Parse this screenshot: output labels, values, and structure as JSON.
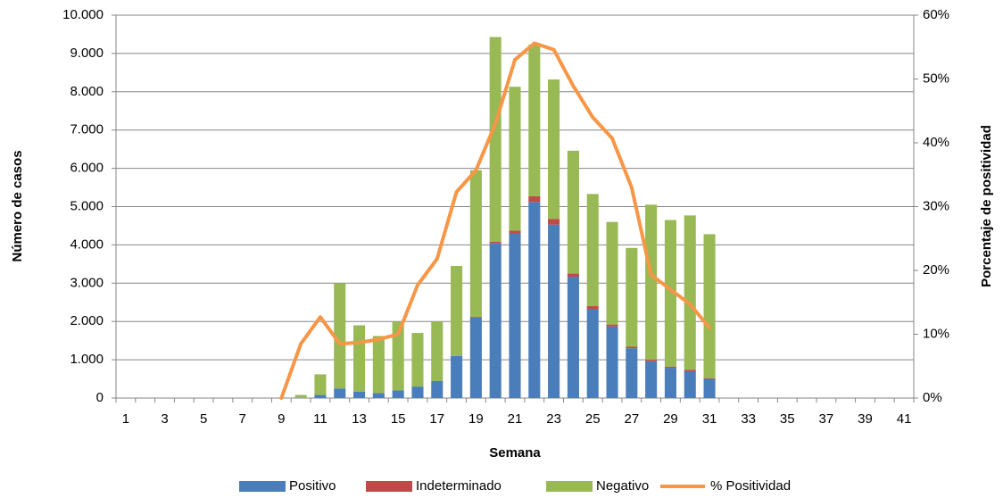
{
  "chart_data": {
    "type": "bar",
    "x_label": "Semana",
    "y_label": "Número de casos",
    "y2_label": "Porcentaje de positividad",
    "categories": [
      1,
      null,
      3,
      null,
      5,
      null,
      7,
      null,
      9,
      null,
      11,
      null,
      13,
      null,
      15,
      null,
      17,
      null,
      19,
      null,
      21,
      null,
      23,
      null,
      25,
      null,
      27,
      null,
      29,
      null,
      31,
      null,
      33,
      null,
      35,
      null,
      37,
      null,
      39,
      null,
      41
    ],
    "series": [
      {
        "name": "Positivo",
        "type": "bar",
        "color": "#4a7ebb",
        "values": [
          null,
          null,
          null,
          null,
          null,
          null,
          null,
          null,
          null,
          0,
          80,
          250,
          170,
          130,
          200,
          300,
          450,
          1100,
          2100,
          4050,
          4300,
          5120,
          4530,
          3170,
          2320,
          1870,
          1300,
          960,
          790,
          700,
          500,
          null,
          null,
          null,
          null,
          null,
          null,
          null,
          null,
          null,
          null
        ]
      },
      {
        "name": "Indeterminado",
        "type": "bar",
        "color": "#be4b48",
        "values": [
          null,
          null,
          null,
          null,
          null,
          null,
          null,
          null,
          null,
          0,
          0,
          0,
          0,
          0,
          0,
          0,
          0,
          0,
          20,
          30,
          70,
          150,
          150,
          80,
          80,
          50,
          40,
          40,
          30,
          40,
          20,
          null,
          null,
          null,
          null,
          null,
          null,
          null,
          null,
          null,
          null
        ]
      },
      {
        "name": "Negativo",
        "type": "bar",
        "color": "#98b954",
        "values": [
          null,
          null,
          null,
          null,
          null,
          null,
          null,
          null,
          null,
          80,
          540,
          2750,
          1730,
          1490,
          1800,
          1400,
          1550,
          2350,
          3830,
          5350,
          3760,
          3960,
          3640,
          3210,
          2930,
          2680,
          2580,
          4050,
          3830,
          4030,
          3760,
          null,
          null,
          null,
          null,
          null,
          null,
          null,
          null,
          null,
          null
        ]
      },
      {
        "name": "% Positividad",
        "type": "line",
        "axis": "y2",
        "color": "#f79646",
        "values": [
          null,
          null,
          null,
          null,
          null,
          null,
          null,
          null,
          0,
          8.5,
          12.7,
          8.5,
          8.7,
          9.2,
          10,
          17.7,
          21.8,
          32.3,
          35.7,
          43,
          53,
          55.6,
          54.6,
          48.9,
          44,
          40.7,
          33,
          19.3,
          17,
          14.7,
          11,
          null,
          null,
          null,
          null,
          null,
          null,
          null,
          null,
          null,
          null
        ]
      }
    ],
    "ylim": [
      0,
      10000
    ],
    "yticks": [
      0,
      {
        "value": 1000,
        "label": "1.000"
      },
      {
        "value": 2000,
        "label": "2.000"
      },
      {
        "value": 3000,
        "label": "3.000"
      },
      {
        "value": 4000,
        "label": "4.000"
      },
      {
        "value": 5000,
        "label": "5.000"
      },
      {
        "value": 6000,
        "label": "6.000"
      },
      {
        "value": 7000,
        "label": "7.000"
      },
      {
        "value": 8000,
        "label": "8.000"
      },
      {
        "value": 9000,
        "label": "9.000"
      },
      {
        "value": 10000,
        "label": "10.000"
      }
    ],
    "y2lim": [
      0,
      60
    ],
    "y2ticks": [
      {
        "value": 0,
        "label": "0%"
      },
      {
        "value": 10,
        "label": "10%"
      },
      {
        "value": 20,
        "label": "20%"
      },
      {
        "value": 30,
        "label": "30%"
      },
      {
        "value": 40,
        "label": "40%"
      },
      {
        "value": 50,
        "label": "50%"
      },
      {
        "value": 60,
        "label": "60%"
      }
    ],
    "grid": true,
    "legend": "bottom"
  }
}
